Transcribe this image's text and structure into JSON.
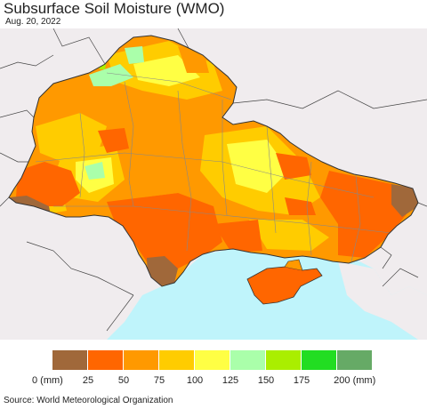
{
  "title": "Subsurface Soil Moisture (WMO)",
  "date": "Aug. 20, 2022",
  "source": "Source: World Meteorological Organization",
  "legend": {
    "colors": [
      "#a0683a",
      "#ff6600",
      "#ff9900",
      "#ffcc00",
      "#ffff44",
      "#aaffaa",
      "#aaee00",
      "#22dd22",
      "#66aa66"
    ],
    "ticks": [
      "0 (mm)",
      "25",
      "50",
      "75",
      "100",
      "125",
      "150",
      "175",
      "200 (mm)"
    ]
  },
  "map_colors": {
    "sea": "#bff4fb",
    "neighbor": "#f0ecee",
    "border": "#555555"
  }
}
